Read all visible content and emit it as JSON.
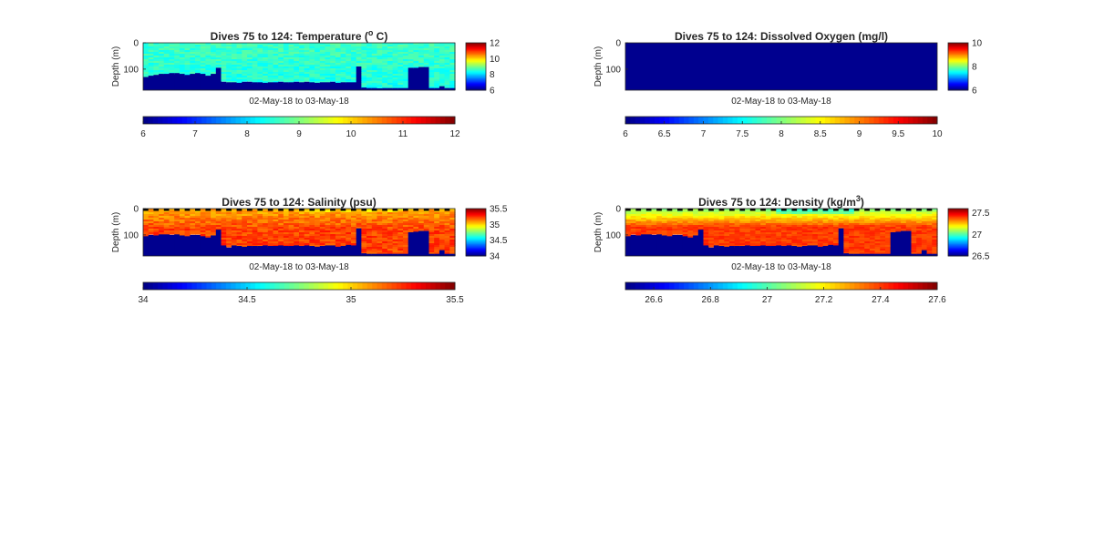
{
  "figure": {
    "background": "#ffffff",
    "colormap": "jet",
    "mask_color": "#00008f"
  },
  "chart_data": [
    {
      "type": "heatmap",
      "variable": "temperature",
      "title_parts": [
        "Dives 75 to 124: Temperature (",
        "o",
        " C)"
      ],
      "ylabel": "Depth (m)",
      "xlabel": "02-May-18 to 03-May-18",
      "yticks": [
        "0",
        "100"
      ],
      "ylim": [
        180,
        0
      ],
      "dives": [
        75,
        124
      ],
      "clim": [
        6,
        12
      ],
      "colorbar_ticks": [
        "12",
        "10",
        "8",
        "6"
      ],
      "hcolorbar_ticks": [
        "6",
        "7",
        "8",
        "9",
        "10",
        "11",
        "12"
      ],
      "surface_value": 8.6,
      "deep_value": 8.4,
      "bottom_depths": [
        130,
        125,
        122,
        118,
        118,
        115,
        115,
        118,
        122,
        118,
        115,
        118,
        125,
        118,
        95,
        148,
        150,
        150,
        152,
        148,
        148,
        150,
        150,
        152,
        150,
        150,
        148,
        150,
        150,
        148,
        150,
        148,
        150,
        152,
        150,
        150,
        148,
        152,
        150,
        150,
        150,
        90,
        170,
        172,
        172,
        173,
        172,
        172,
        172,
        172,
        172,
        95,
        95,
        92,
        92,
        172,
        172,
        165,
        172,
        172
      ],
      "has_top_dashes": false
    },
    {
      "type": "heatmap",
      "variable": "oxygen",
      "title_parts": [
        "Dives 75 to 124: Dissolved Oxygen (mg/l)"
      ],
      "ylabel": "Depth (m)",
      "xlabel": "02-May-18 to 03-May-18",
      "yticks": [
        "0",
        "100"
      ],
      "ylim": [
        180,
        0
      ],
      "dives": [
        75,
        124
      ],
      "clim": [
        6,
        10
      ],
      "colorbar_ticks": [
        "10",
        "8",
        "6"
      ],
      "hcolorbar_ticks": [
        "6",
        "6.5",
        "7",
        "7.5",
        "8",
        "8.5",
        "9",
        "9.5",
        "10"
      ],
      "all_missing": true,
      "has_top_dashes": false
    },
    {
      "type": "heatmap",
      "variable": "salinity",
      "title_parts": [
        "Dives 75 to 124: Salinity (psu)"
      ],
      "ylabel": "Depth (m)",
      "xlabel": "02-May-18 to 03-May-18",
      "yticks": [
        "0",
        "100"
      ],
      "ylim": [
        180,
        0
      ],
      "dives": [
        75,
        124
      ],
      "clim": [
        34,
        35.5
      ],
      "colorbar_ticks": [
        "35.5",
        "35",
        "34.5",
        "34"
      ],
      "hcolorbar_ticks": [
        "34",
        "34.5",
        "35",
        "35.5"
      ],
      "surface_value": 35.05,
      "deep_value": 35.22,
      "bottom_depths": [
        105,
        100,
        102,
        98,
        98,
        100,
        98,
        102,
        105,
        100,
        100,
        105,
        110,
        102,
        80,
        140,
        148,
        140,
        142,
        145,
        142,
        142,
        142,
        140,
        142,
        142,
        140,
        142,
        142,
        140,
        142,
        140,
        142,
        145,
        142,
        140,
        140,
        145,
        142,
        138,
        140,
        75,
        170,
        172,
        172,
        172,
        172,
        172,
        172,
        172,
        172,
        90,
        88,
        85,
        85,
        172,
        172,
        158,
        172,
        172
      ],
      "has_top_dashes": true
    },
    {
      "type": "heatmap",
      "variable": "density",
      "title_parts": [
        "Dives 75 to 124: Density (kg/m",
        "3",
        ")"
      ],
      "ylabel": "Depth (m)",
      "xlabel": "02-May-18 to 03-May-18",
      "yticks": [
        "0",
        "100"
      ],
      "ylim": [
        180,
        0
      ],
      "dives": [
        75,
        124
      ],
      "clim": [
        26.5,
        27.6
      ],
      "colorbar_ticks": [
        "27.5",
        "27",
        "26.5"
      ],
      "hcolorbar_ticks": [
        "26.6",
        "26.8",
        "27",
        "27.2",
        "27.4",
        "27.6"
      ],
      "surface_value": 27.05,
      "deep_value": 27.4,
      "bottom_depths": [
        105,
        100,
        102,
        98,
        98,
        100,
        98,
        102,
        105,
        100,
        100,
        105,
        110,
        102,
        80,
        140,
        148,
        140,
        142,
        145,
        142,
        142,
        142,
        140,
        142,
        142,
        140,
        142,
        142,
        140,
        142,
        140,
        142,
        145,
        142,
        140,
        140,
        145,
        142,
        138,
        140,
        75,
        170,
        172,
        172,
        172,
        172,
        172,
        172,
        172,
        172,
        90,
        88,
        85,
        85,
        172,
        172,
        158,
        172,
        172
      ],
      "has_top_dashes": true
    }
  ]
}
